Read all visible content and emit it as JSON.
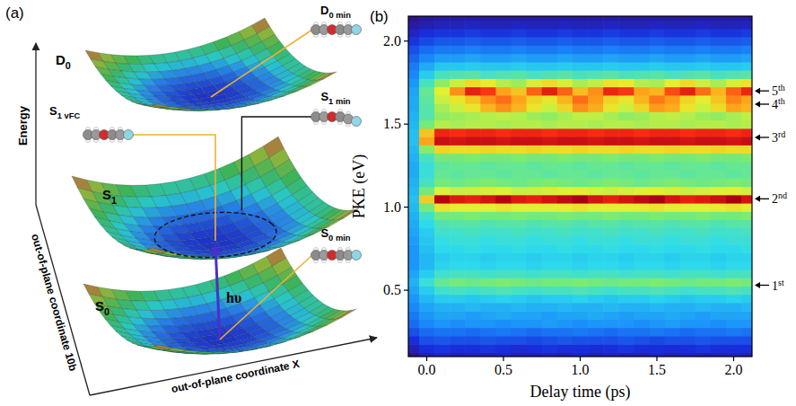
{
  "diagram": {
    "panel_label": "(a)",
    "axes": {
      "energy": "Energy",
      "coordinate_10b": "out-of-plane coordinate 10b",
      "coordinate_x": "out-of-plane coordinate X"
    },
    "surfaces": [
      {
        "main": "D",
        "sub": "0"
      },
      {
        "main": "S",
        "sub": "1"
      },
      {
        "main": "S",
        "sub": "0"
      }
    ],
    "geometries": [
      {
        "main": "D",
        "sub": "0 min"
      },
      {
        "main": "S",
        "sub": "1 vFC"
      },
      {
        "main": "S",
        "sub": "1 min"
      },
      {
        "main": "S",
        "sub": "0 min"
      }
    ],
    "excitation": "hυ"
  },
  "chart_data": {
    "type": "heatmap",
    "panel_label": "(b)",
    "x_label": "Delay time (ps)",
    "y_label": "PKE (eV)",
    "x": [
      -0.1,
      0,
      0.1,
      0.2,
      0.3,
      0.4,
      0.5,
      0.6,
      0.7,
      0.8,
      0.9,
      1,
      1.1,
      1.2,
      1.3,
      1.4,
      1.5,
      1.6,
      1.7,
      1.8,
      1.9,
      2,
      2.1
    ],
    "y": [
      0.1,
      0.15,
      0.2,
      0.25,
      0.3,
      0.35,
      0.4,
      0.45,
      0.5,
      0.55,
      0.6,
      0.65,
      0.7,
      0.75,
      0.8,
      0.85,
      0.9,
      0.95,
      1,
      1.05,
      1.1,
      1.15,
      1.2,
      1.25,
      1.3,
      1.35,
      1.4,
      1.45,
      1.5,
      1.55,
      1.6,
      1.65,
      1.7,
      1.75,
      1.8,
      1.85,
      1.9,
      1.95,
      2,
      2.05,
      2.1,
      2.15
    ],
    "cells": [
      [
        1.5,
        2,
        2.2,
        2,
        2.1,
        2,
        2.2,
        2,
        2,
        2.1,
        2,
        2.2,
        2,
        2.1,
        2,
        2,
        2.2,
        2,
        2.1,
        2,
        2,
        2.1,
        2
      ],
      [
        2,
        2.5,
        2.6,
        2.5,
        2.5,
        2.6,
        2.5,
        2.4,
        2.5,
        2.6,
        2.5,
        2.5,
        2.4,
        2.5,
        2.6,
        2.5,
        2.5,
        2.4,
        2.5,
        2.6,
        2.5,
        2.5,
        2.5
      ],
      [
        2.5,
        3,
        3.1,
        3,
        3,
        3.1,
        3,
        3,
        2.9,
        3,
        3.1,
        3,
        3,
        3,
        3.1,
        3,
        2.9,
        3,
        3,
        3.1,
        3,
        3,
        3
      ],
      [
        3,
        3.4,
        3.5,
        3.5,
        3.4,
        3.5,
        3.6,
        3.5,
        3.4,
        3.5,
        3.5,
        3.6,
        3.5,
        3.4,
        3.5,
        3.5,
        3.6,
        3.5,
        3.4,
        3.5,
        3.5,
        3.6,
        3.5
      ],
      [
        3.4,
        3.8,
        4,
        3.9,
        4,
        4,
        3.9,
        4,
        4,
        4.1,
        4,
        3.9,
        4,
        4,
        4,
        3.9,
        4,
        4.1,
        4,
        4,
        3.9,
        4,
        4
      ],
      [
        3.6,
        4,
        4.2,
        4.2,
        4.1,
        4.2,
        4.3,
        4.2,
        4.2,
        4.1,
        4.2,
        4.2,
        4.3,
        4.2,
        4.1,
        4.2,
        4.2,
        4.3,
        4.2,
        4.1,
        4.2,
        4.2,
        4.2
      ],
      [
        3.8,
        4.2,
        4.4,
        4.4,
        4.5,
        4.4,
        4.4,
        4.5,
        4.4,
        4.4,
        4.5,
        4.4,
        4.4,
        4.5,
        4.4,
        4.4,
        4.5,
        4.4,
        4.4,
        4.5,
        4.4,
        4.4,
        4.5
      ],
      [
        4,
        4.5,
        4.8,
        4.8,
        4.7,
        4.8,
        4.9,
        4.8,
        4.7,
        4.8,
        4.8,
        4.9,
        4.8,
        4.7,
        4.8,
        4.8,
        4.9,
        4.8,
        4.7,
        4.8,
        4.8,
        4.9,
        4.8
      ],
      [
        4.2,
        4.8,
        5.3,
        5.4,
        5.3,
        5.4,
        5.5,
        5.4,
        5.3,
        5.4,
        5.4,
        5.5,
        5.4,
        5.3,
        5.4,
        5.4,
        5.5,
        5.4,
        5.3,
        5.4,
        5.4,
        5.5,
        5.4
      ],
      [
        4.4,
        5.2,
        5.8,
        6,
        5.9,
        6,
        6.1,
        6,
        5.9,
        6,
        6,
        6.1,
        6,
        5.9,
        6,
        6,
        6.1,
        6,
        5.9,
        6,
        6,
        6.1,
        6
      ],
      [
        4.2,
        4.8,
        5.3,
        5.4,
        5.4,
        5.3,
        5.4,
        5.4,
        5.3,
        5.4,
        5.4,
        5.3,
        5.4,
        5.4,
        5.3,
        5.4,
        5.4,
        5.3,
        5.4,
        5.4,
        5.3,
        5.4,
        5.4
      ],
      [
        4,
        4.5,
        4.9,
        5,
        5,
        4.9,
        5,
        5,
        4.9,
        5,
        5,
        4.9,
        5,
        5,
        4.9,
        5,
        5,
        4.9,
        5,
        5,
        4.9,
        5,
        5
      ],
      [
        4,
        4.5,
        4.8,
        4.9,
        4.9,
        4.8,
        4.9,
        4.9,
        4.8,
        4.9,
        4.9,
        4.8,
        4.9,
        4.9,
        4.8,
        4.9,
        4.9,
        4.8,
        4.9,
        4.9,
        4.8,
        4.9,
        4.9
      ],
      [
        4,
        4.6,
        5,
        5,
        5.1,
        5,
        5,
        5.1,
        5,
        5,
        5.1,
        5,
        5,
        5.1,
        5,
        5,
        5.1,
        5,
        5,
        5.1,
        5,
        5,
        5.1
      ],
      [
        4.1,
        4.7,
        5.1,
        5.2,
        5.2,
        5.1,
        5.2,
        5.2,
        5.1,
        5.2,
        5.2,
        5.1,
        5.2,
        5.2,
        5.1,
        5.2,
        5.2,
        5.1,
        5.2,
        5.2,
        5.1,
        5.2,
        5.2
      ],
      [
        4.2,
        4.8,
        5.3,
        5.3,
        5.4,
        5.3,
        5.3,
        5.4,
        5.3,
        5.3,
        5.4,
        5.3,
        5.3,
        5.4,
        5.3,
        5.3,
        5.4,
        5.3,
        5.3,
        5.4,
        5.3,
        5.3,
        5.4
      ],
      [
        4.3,
        5,
        5.5,
        5.6,
        5.6,
        5.5,
        5.6,
        5.6,
        5.5,
        5.6,
        5.6,
        5.5,
        5.6,
        5.6,
        5.5,
        5.6,
        5.6,
        5.5,
        5.6,
        5.6,
        5.5,
        5.6,
        5.6
      ],
      [
        4.4,
        5.3,
        6,
        6,
        6.1,
        6,
        6,
        6.1,
        6,
        6,
        6.1,
        6,
        6,
        6.1,
        6,
        6,
        6.1,
        6,
        6,
        6.1,
        6,
        6,
        6.1
      ],
      [
        4.5,
        6,
        7.2,
        7,
        7,
        7,
        7.2,
        7,
        7,
        7,
        7.1,
        7.2,
        7,
        7,
        7,
        7.1,
        7.2,
        7,
        7,
        7,
        7.1,
        7.2,
        7
      ],
      [
        4.6,
        7.5,
        9.8,
        9.4,
        9.3,
        9.5,
        9.8,
        9.4,
        9.3,
        9.5,
        9.7,
        9.9,
        9.5,
        9.3,
        9.5,
        9.7,
        9.9,
        9.5,
        9.3,
        9.4,
        9.6,
        9.9,
        9.5
      ],
      [
        4.5,
        6,
        7,
        6.8,
        6.8,
        6.9,
        7,
        6.8,
        6.8,
        6.9,
        7,
        7.1,
        6.9,
        6.8,
        6.9,
        7,
        7.1,
        6.9,
        6.8,
        6.9,
        7,
        7.1,
        6.9
      ],
      [
        4.4,
        5.4,
        6,
        5.9,
        6,
        6.1,
        6,
        5.9,
        6,
        6.1,
        6,
        5.9,
        6,
        6.1,
        6,
        5.9,
        6,
        6.1,
        6,
        5.9,
        6,
        6.1,
        6
      ],
      [
        4.3,
        5.2,
        5.8,
        5.7,
        5.8,
        5.8,
        5.7,
        5.8,
        5.8,
        5.7,
        5.8,
        5.8,
        5.7,
        5.8,
        5.8,
        5.7,
        5.8,
        5.8,
        5.7,
        5.8,
        5.8,
        5.7,
        5.8
      ],
      [
        4.3,
        5.2,
        5.7,
        5.8,
        5.8,
        5.7,
        5.8,
        5.8,
        5.7,
        5.8,
        5.8,
        5.7,
        5.8,
        5.8,
        5.7,
        5.8,
        5.8,
        5.7,
        5.8,
        5.8,
        5.7,
        5.8,
        5.8
      ],
      [
        4.4,
        5.4,
        6,
        6,
        6.1,
        6,
        6,
        6.1,
        6,
        6,
        6.1,
        6,
        6,
        6.1,
        6,
        6,
        6.1,
        6,
        6,
        6.1,
        6,
        6,
        6.1
      ],
      [
        4.5,
        6.2,
        7.4,
        7.3,
        7.3,
        7.4,
        7.3,
        7.3,
        7.4,
        7.3,
        7.3,
        7.4,
        7.3,
        7.3,
        7.4,
        7.3,
        7.3,
        7.4,
        7.3,
        7.3,
        7.4,
        7.3,
        7.3
      ],
      [
        4.6,
        8,
        9.6,
        9.5,
        9.6,
        9.6,
        9.5,
        9.6,
        9.6,
        9.5,
        9.6,
        9.6,
        9.5,
        9.6,
        9.6,
        9.5,
        9.6,
        9.6,
        9.5,
        9.6,
        9.6,
        9.5,
        9.6
      ],
      [
        4.6,
        7.6,
        9.2,
        9.1,
        9.2,
        9.2,
        9.1,
        9.2,
        9.2,
        9.1,
        9.2,
        9.2,
        9.1,
        9.2,
        9.2,
        9.1,
        9.2,
        9.2,
        9.1,
        9.2,
        9.2,
        9.1,
        9.2
      ],
      [
        4.5,
        6,
        6.6,
        6.5,
        6.6,
        6.6,
        6.5,
        6.6,
        6.6,
        6.5,
        6.6,
        6.6,
        6.5,
        6.6,
        6.6,
        6.5,
        6.6,
        6.6,
        6.5,
        6.6,
        6.6,
        6.5,
        6.6
      ],
      [
        4.4,
        5.6,
        6.3,
        6.4,
        6.5,
        6.6,
        6.7,
        6.6,
        6.4,
        6.3,
        6.5,
        6.7,
        6.7,
        6.5,
        6.3,
        6.4,
        6.6,
        6.7,
        6.6,
        6.4,
        6.3,
        6.5,
        6.7
      ],
      [
        4.3,
        5.6,
        6.5,
        6.8,
        7.2,
        7.8,
        8.2,
        7.8,
        7.2,
        6.8,
        7.4,
        8.2,
        7.9,
        7.2,
        6.8,
        7.4,
        8.1,
        7.9,
        7.2,
        6.8,
        7.3,
        8,
        7.8
      ],
      [
        4.3,
        5.7,
        6.8,
        7.2,
        7.6,
        8.2,
        8.5,
        8,
        7.4,
        7.2,
        7.8,
        8.5,
        8.1,
        7.4,
        7.2,
        7.8,
        8.4,
        8.1,
        7.4,
        7.1,
        7.6,
        8.3,
        8
      ],
      [
        4.2,
        5.8,
        7,
        8.2,
        9.3,
        9,
        8,
        7.6,
        8.6,
        9.3,
        8.6,
        7.7,
        8.2,
        9.2,
        9,
        8,
        7.8,
        8.8,
        9.3,
        8.5,
        7.8,
        8.6,
        9.2
      ],
      [
        4,
        5.4,
        6.3,
        6.8,
        7.3,
        7.1,
        6.6,
        6.4,
        6.9,
        7.3,
        6.9,
        6.5,
        6.7,
        7.2,
        7.1,
        6.6,
        6.5,
        7,
        7.3,
        6.8,
        6.5,
        6.9,
        7.2
      ],
      [
        3.8,
        4.8,
        5.4,
        5.5,
        5.6,
        5.4,
        5.5,
        5.6,
        5.4,
        5.5,
        5.6,
        5.4,
        5.5,
        5.6,
        5.4,
        5.5,
        5.6,
        5.4,
        5.5,
        5.6,
        5.4,
        5.5,
        5.6
      ],
      [
        3.6,
        4.3,
        4.7,
        4.7,
        4.8,
        4.7,
        4.7,
        4.8,
        4.7,
        4.7,
        4.8,
        4.7,
        4.7,
        4.8,
        4.7,
        4.7,
        4.8,
        4.7,
        4.7,
        4.8,
        4.7,
        4.7,
        4.8
      ],
      [
        3.3,
        3.8,
        4.1,
        4.1,
        4.2,
        4.1,
        4.1,
        4.2,
        4.1,
        4.1,
        4.2,
        4.1,
        4.1,
        4.2,
        4.1,
        4.1,
        4.2,
        4.1,
        4.1,
        4.2,
        4.1,
        4.1,
        4.2
      ],
      [
        3,
        3.4,
        3.6,
        3.6,
        3.7,
        3.6,
        3.6,
        3.7,
        3.6,
        3.6,
        3.7,
        3.6,
        3.6,
        3.7,
        3.6,
        3.6,
        3.7,
        3.6,
        3.6,
        3.7,
        3.6,
        3.6,
        3.7
      ],
      [
        2.6,
        2.9,
        3.1,
        3.1,
        3.2,
        3.1,
        3.1,
        3.2,
        3.1,
        3.1,
        3.2,
        3.1,
        3.1,
        3.2,
        3.1,
        3.1,
        3.2,
        3.1,
        3.1,
        3.2,
        3.1,
        3.1,
        3.2
      ],
      [
        2.2,
        2.5,
        2.6,
        2.6,
        2.7,
        2.6,
        2.6,
        2.7,
        2.6,
        2.6,
        2.7,
        2.6,
        2.6,
        2.7,
        2.6,
        2.6,
        2.7,
        2.6,
        2.6,
        2.7,
        2.6,
        2.6,
        2.7
      ],
      [
        1.8,
        2,
        2.1,
        2.1,
        2.2,
        2.1,
        2.1,
        2.2,
        2.1,
        2.1,
        2.2,
        2.1,
        2.1,
        2.2,
        2.1,
        2.1,
        2.2,
        2.1,
        2.1,
        2.2,
        2.1,
        2.1,
        2.2
      ],
      [
        1.5,
        1.7,
        1.8,
        1.8,
        1.8,
        1.8,
        1.8,
        1.8,
        1.8,
        1.8,
        1.8,
        1.8,
        1.8,
        1.8,
        1.8,
        1.8,
        1.8,
        1.8,
        1.8,
        1.8,
        1.8,
        1.8,
        1.8
      ]
    ],
    "xlim": [
      -0.12,
      2.12
    ],
    "ylim": [
      0.1,
      2.15
    ],
    "xticks": [
      {
        "value": 0,
        "label": "0.0"
      },
      0.5,
      {
        "value": 1,
        "label": "1.0"
      },
      1.5,
      {
        "value": 2,
        "label": "2.0"
      }
    ],
    "yticks": [
      0.5,
      {
        "value": 1,
        "label": "1.0"
      },
      1.5,
      {
        "value": 2,
        "label": "2.0"
      }
    ],
    "annotations": [
      {
        "number": "5",
        "suffix": "th",
        "y": 1.7
      },
      {
        "number": "4",
        "suffix": "th",
        "y": 1.62
      },
      {
        "number": "3",
        "suffix": "rd",
        "y": 1.42
      },
      {
        "number": "2",
        "suffix": "nd",
        "y": 1.05
      },
      {
        "number": "1",
        "suffix": "st",
        "y": 0.53
      }
    ]
  }
}
